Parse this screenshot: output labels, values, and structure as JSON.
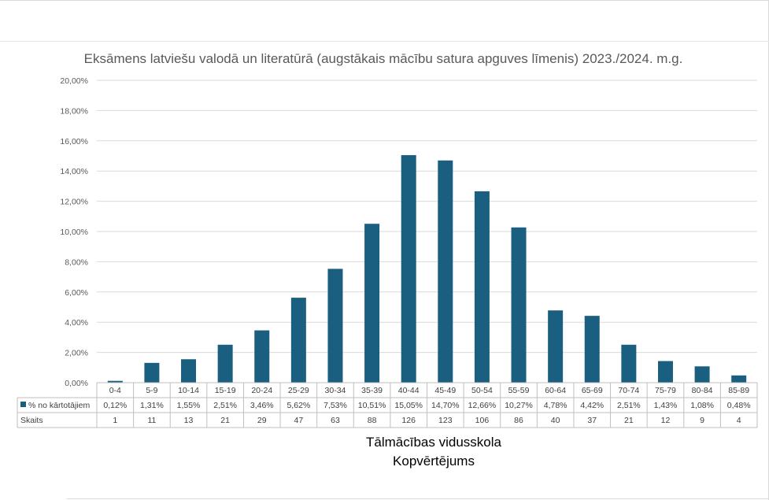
{
  "chart_data": {
    "type": "bar",
    "title": "Eksāmens latviešu valodā un literatūrā (augstākais mācību satura apguves līmenis) 2023./2024. m.g.",
    "categories": [
      "0-4",
      "5-9",
      "10-14",
      "15-19",
      "20-24",
      "25-29",
      "30-34",
      "35-39",
      "40-44",
      "45-49",
      "50-54",
      "55-59",
      "60-64",
      "65-69",
      "70-74",
      "75-79",
      "80-84",
      "85-89"
    ],
    "series": [
      {
        "name": "% no kārtotājiem",
        "values": [
          0.12,
          1.31,
          1.55,
          2.51,
          3.46,
          5.62,
          7.53,
          10.51,
          15.05,
          14.7,
          12.66,
          10.27,
          4.78,
          4.42,
          2.51,
          1.43,
          1.08,
          0.48
        ],
        "labels": [
          "0,12%",
          "1,31%",
          "1,55%",
          "2,51%",
          "3,46%",
          "5,62%",
          "7,53%",
          "10,51%",
          "15,05%",
          "14,70%",
          "12,66%",
          "10,27%",
          "4,78%",
          "4,42%",
          "2,51%",
          "1,43%",
          "1,08%",
          "0,48%"
        ],
        "color": "#1b5f80"
      }
    ],
    "table_rows": [
      {
        "label": "Skaits",
        "values": [
          "1",
          "11",
          "13",
          "21",
          "29",
          "47",
          "63",
          "88",
          "126",
          "123",
          "106",
          "86",
          "40",
          "37",
          "21",
          "12",
          "9",
          "4"
        ]
      }
    ],
    "ylim": [
      0,
      20
    ],
    "yticks": [
      "0,00%",
      "2,00%",
      "4,00%",
      "6,00%",
      "8,00%",
      "10,00%",
      "12,00%",
      "14,00%",
      "16,00%",
      "18,00%",
      "20,00%"
    ],
    "xlabel_lines": [
      "Tālmācības vidusskola",
      "Kopvērtējums"
    ],
    "grid": true,
    "legend": "data-table"
  }
}
